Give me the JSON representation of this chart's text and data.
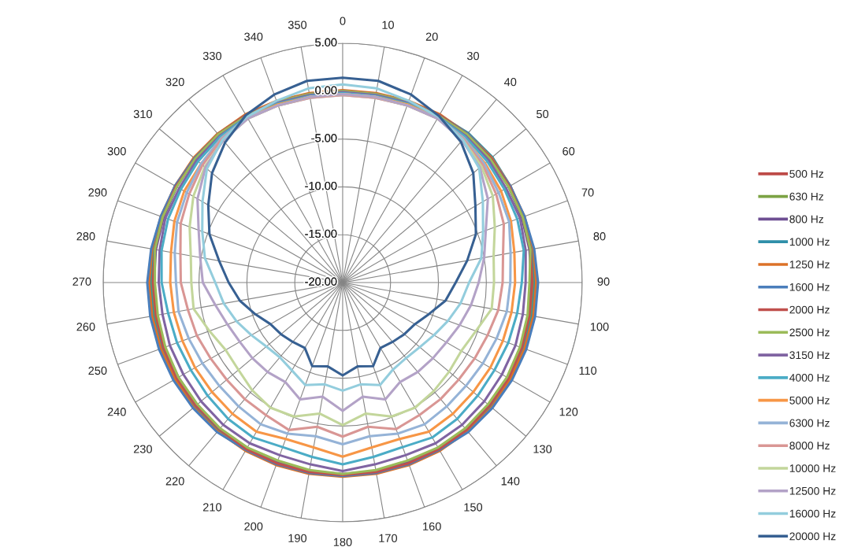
{
  "chart_data": {
    "type": "radar",
    "categories": [
      "0",
      "10",
      "20",
      "30",
      "40",
      "50",
      "60",
      "70",
      "80",
      "90",
      "100",
      "110",
      "120",
      "130",
      "140",
      "150",
      "160",
      "170",
      "180",
      "190",
      "200",
      "210",
      "220",
      "230",
      "240",
      "250",
      "260",
      "270",
      "280",
      "290",
      "300",
      "310",
      "320",
      "330",
      "340",
      "350"
    ],
    "series": [
      {
        "name": "500 Hz",
        "color": "#be4b48",
        "values": [
          0.0,
          0.0,
          0.1,
          0.2,
          0.2,
          0.2,
          0.1,
          0.1,
          0.0,
          0.0,
          0.0,
          0.1,
          0.1,
          0.1,
          0.1,
          0.1,
          0.1,
          0.2,
          0.2,
          0.2,
          0.1,
          0.1,
          0.1,
          0.1,
          0.1,
          0.1,
          0.0,
          0.0,
          0.0,
          0.1,
          0.1,
          0.2,
          0.2,
          0.2,
          0.1,
          0.0
        ]
      },
      {
        "name": "630 Hz",
        "color": "#7ca344",
        "values": [
          -0.1,
          -0.1,
          0.0,
          0.1,
          0.2,
          0.2,
          0.1,
          0.0,
          -0.1,
          -0.1,
          -0.1,
          0.0,
          0.0,
          0.1,
          0.1,
          0.1,
          0.1,
          0.1,
          0.1,
          0.1,
          0.1,
          0.1,
          0.1,
          0.0,
          0.0,
          0.0,
          -0.1,
          -0.1,
          -0.1,
          0.0,
          0.1,
          0.1,
          0.2,
          0.1,
          0.0,
          -0.1
        ]
      },
      {
        "name": "800 Hz",
        "color": "#6e4f93",
        "values": [
          -0.2,
          -0.2,
          -0.1,
          0.1,
          0.1,
          0.1,
          0.0,
          -0.1,
          -0.2,
          -0.3,
          -0.3,
          -0.2,
          -0.1,
          0.0,
          0.0,
          0.0,
          0.0,
          0.0,
          0.0,
          0.0,
          0.0,
          0.0,
          0.0,
          -0.1,
          -0.2,
          -0.2,
          -0.3,
          -0.3,
          -0.2,
          -0.1,
          0.0,
          0.1,
          0.1,
          0.1,
          -0.1,
          -0.2
        ]
      },
      {
        "name": "1000 Hz",
        "color": "#2f8fa9",
        "values": [
          0.0,
          0.0,
          0.1,
          0.2,
          0.4,
          0.4,
          0.2,
          0.1,
          0.1,
          0.1,
          0.1,
          0.1,
          0.2,
          0.2,
          0.2,
          0.2,
          0.2,
          0.2,
          0.2,
          0.2,
          0.2,
          0.2,
          0.2,
          0.2,
          0.1,
          0.1,
          0.1,
          0.1,
          0.1,
          0.1,
          0.2,
          0.2,
          0.3,
          0.2,
          0.1,
          0.0
        ]
      },
      {
        "name": "1250 Hz",
        "color": "#dc7228",
        "values": [
          0.1,
          0.1,
          0.2,
          0.3,
          0.3,
          0.3,
          0.2,
          0.2,
          0.2,
          0.2,
          0.2,
          0.2,
          0.2,
          0.3,
          0.3,
          0.3,
          0.3,
          0.3,
          0.3,
          0.3,
          0.3,
          0.3,
          0.3,
          0.3,
          0.2,
          0.2,
          0.2,
          0.2,
          0.2,
          0.2,
          0.2,
          0.3,
          0.3,
          0.3,
          0.2,
          0.1
        ]
      },
      {
        "name": "1600 Hz",
        "color": "#4a7ebb",
        "values": [
          0.0,
          0.0,
          0.1,
          0.2,
          0.3,
          0.2,
          0.2,
          0.2,
          0.3,
          0.4,
          0.4,
          0.4,
          0.4,
          0.4,
          0.4,
          0.2,
          0.2,
          0.2,
          0.2,
          0.2,
          0.2,
          0.2,
          0.4,
          0.4,
          0.4,
          0.4,
          0.4,
          0.4,
          0.3,
          0.2,
          0.2,
          0.2,
          0.2,
          0.2,
          0.1,
          0.0
        ]
      },
      {
        "name": "2000 Hz",
        "color": "#c0504d",
        "values": [
          0.0,
          0.0,
          0.1,
          0.2,
          0.2,
          0.2,
          0.1,
          0.0,
          -0.1,
          -0.2,
          -0.2,
          -0.1,
          0.0,
          0.0,
          0.1,
          0.1,
          0.1,
          0.1,
          0.1,
          0.1,
          0.1,
          0.1,
          0.0,
          0.0,
          0.0,
          -0.1,
          -0.2,
          -0.2,
          -0.1,
          0.0,
          0.1,
          0.1,
          0.2,
          0.2,
          0.1,
          0.0
        ]
      },
      {
        "name": "2500 Hz",
        "color": "#9bbb59",
        "values": [
          0.0,
          0.0,
          0.1,
          0.1,
          0.2,
          0.1,
          0.0,
          0.0,
          -0.1,
          -0.5,
          -0.4,
          -0.3,
          -0.2,
          -0.2,
          -0.1,
          -0.1,
          -0.2,
          -0.1,
          0.0,
          -0.1,
          -0.2,
          -0.1,
          -0.1,
          -0.2,
          -0.2,
          -0.3,
          -0.4,
          -0.4,
          -0.1,
          0.0,
          0.0,
          0.1,
          0.2,
          0.1,
          0.1,
          0.0
        ]
      },
      {
        "name": "3150 Hz",
        "color": "#8064a2",
        "values": [
          -0.1,
          -0.1,
          0.0,
          0.0,
          0.0,
          -0.1,
          -0.3,
          -0.3,
          -0.6,
          -0.9,
          -0.9,
          -0.8,
          -0.8,
          -0.7,
          -0.6,
          -0.6,
          -0.8,
          -0.7,
          -0.3,
          -0.7,
          -0.8,
          -0.6,
          -0.6,
          -0.7,
          -0.8,
          -0.8,
          -0.9,
          -0.8,
          -0.6,
          -0.3,
          -0.3,
          -0.1,
          0.0,
          0.0,
          0.0,
          -0.1
        ]
      },
      {
        "name": "4000 Hz",
        "color": "#4bacc6",
        "values": [
          -0.2,
          -0.2,
          -0.1,
          0.0,
          -0.1,
          -0.3,
          -0.5,
          -0.6,
          -0.8,
          -1.3,
          -1.5,
          -1.6,
          -1.7,
          -1.6,
          -1.4,
          -1.3,
          -1.7,
          -1.5,
          -1.0,
          -1.5,
          -1.7,
          -1.3,
          -1.4,
          -1.6,
          -1.7,
          -1.6,
          -1.5,
          -1.1,
          -0.8,
          -0.6,
          -0.5,
          -0.3,
          -0.1,
          0.0,
          -0.1,
          -0.2
        ]
      },
      {
        "name": "5000 Hz",
        "color": "#f79646",
        "values": [
          -0.3,
          -0.3,
          -0.2,
          -0.1,
          -0.3,
          -0.6,
          -0.9,
          -1.3,
          -1.8,
          -2.0,
          -2.1,
          -2.2,
          -2.2,
          -2.2,
          -2.1,
          -2.0,
          -2.6,
          -2.5,
          -1.8,
          -2.5,
          -2.6,
          -2.0,
          -2.1,
          -2.2,
          -2.2,
          -2.2,
          -2.1,
          -2.0,
          -1.8,
          -1.3,
          -0.9,
          -0.7,
          -0.3,
          -0.1,
          -0.2,
          -0.3
        ]
      },
      {
        "name": "6300 Hz",
        "color": "#95b3d7",
        "values": [
          -0.4,
          -0.4,
          -0.3,
          -0.1,
          -0.3,
          -0.7,
          -1.2,
          -1.5,
          -2.2,
          -2.5,
          -2.6,
          -2.9,
          -3.1,
          -3.2,
          -3.1,
          -2.9,
          -3.2,
          -3.7,
          -3.1,
          -3.7,
          -3.2,
          -2.9,
          -3.1,
          -3.2,
          -3.1,
          -2.9,
          -2.6,
          -2.6,
          -2.2,
          -1.6,
          -1.2,
          -0.7,
          -0.3,
          -0.1,
          -0.3,
          -0.4
        ]
      },
      {
        "name": "8000 Hz",
        "color": "#d99694",
        "values": [
          -0.4,
          -0.4,
          -0.3,
          -0.2,
          -0.4,
          -0.9,
          -1.5,
          -2.1,
          -3.0,
          -3.3,
          -3.5,
          -3.9,
          -4.1,
          -4.2,
          -4.1,
          -4.0,
          -3.7,
          -4.7,
          -3.9,
          -4.7,
          -3.6,
          -4.0,
          -4.1,
          -4.2,
          -4.1,
          -3.8,
          -3.6,
          -3.1,
          -2.8,
          -2.0,
          -1.5,
          -0.9,
          -0.4,
          -0.2,
          -0.3,
          -0.4
        ]
      },
      {
        "name": "10000 Hz",
        "color": "#c3d69b",
        "values": [
          -0.3,
          -0.3,
          -0.3,
          -0.2,
          -0.5,
          -1.1,
          -1.9,
          -3.1,
          -4.0,
          -4.2,
          -4.2,
          -5.2,
          -5.7,
          -5.5,
          -5.2,
          -4.9,
          -5.1,
          -6.1,
          -5.1,
          -6.1,
          -5.1,
          -4.9,
          -5.3,
          -5.8,
          -5.9,
          -5.2,
          -4.2,
          -4.2,
          -3.9,
          -3.0,
          -2.0,
          -1.2,
          -0.6,
          -0.2,
          -0.3,
          -0.3
        ]
      },
      {
        "name": "12500 Hz",
        "color": "#b3a2c7",
        "values": [
          -0.3,
          -0.3,
          -0.3,
          -0.2,
          -0.6,
          -1.3,
          -2.5,
          -4.1,
          -5.0,
          -5.8,
          -6.4,
          -7.0,
          -7.5,
          -7.7,
          -7.8,
          -8.0,
          -7.0,
          -7.9,
          -6.6,
          -7.9,
          -7.0,
          -8.0,
          -7.8,
          -7.7,
          -7.6,
          -7.2,
          -6.5,
          -5.4,
          -4.9,
          -4.0,
          -2.5,
          -1.3,
          -0.6,
          -0.2,
          -0.3,
          -0.3
        ]
      },
      {
        "name": "16000 Hz",
        "color": "#93cddd",
        "values": [
          0.7,
          0.6,
          0.2,
          0.0,
          -0.5,
          -1.4,
          -3.1,
          -4.4,
          -5.3,
          -6.8,
          -7.5,
          -8.3,
          -9.0,
          -9.5,
          -9.7,
          -9.5,
          -8.6,
          -9.2,
          -8.7,
          -9.2,
          -8.6,
          -9.4,
          -9.8,
          -9.6,
          -9.0,
          -8.2,
          -7.4,
          -6.7,
          -5.4,
          -4.4,
          -3.1,
          -1.5,
          -0.5,
          0.0,
          0.2,
          0.6
        ]
      },
      {
        "name": "20000 Hz",
        "color": "#376092",
        "values": [
          1.4,
          1.4,
          0.9,
          0.1,
          -0.8,
          -2.2,
          -4.0,
          -5.2,
          -6.8,
          -8.2,
          -9.1,
          -10.4,
          -11.3,
          -11.6,
          -11.9,
          -12.1,
          -10.7,
          -11.1,
          -10.3,
          -11.1,
          -10.7,
          -12.1,
          -11.9,
          -11.6,
          -11.3,
          -10.3,
          -9.1,
          -8.1,
          -6.9,
          -5.2,
          -3.8,
          -2.2,
          -0.9,
          0.2,
          0.9,
          1.4
        ]
      }
    ],
    "ylim": [
      -20,
      5
    ],
    "yticks": [
      {
        "value": -20,
        "label": "-20.00"
      },
      {
        "value": -15,
        "label": "-15.00"
      },
      {
        "value": -10,
        "label": "-10.00"
      },
      {
        "value": -5,
        "label": "-5.00"
      },
      {
        "value": 0,
        "label": "0.00"
      },
      {
        "value": 5,
        "label": "5.00"
      }
    ],
    "grid": true,
    "legend": "right"
  }
}
